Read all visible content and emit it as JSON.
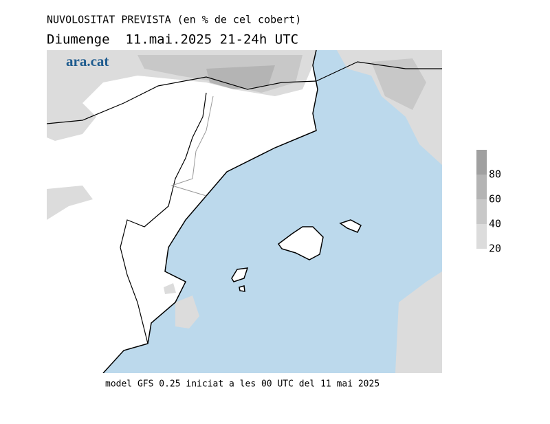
{
  "header": {
    "title": "NUVOLOSITAT PREVISTA (en % de cel cobert)",
    "subtitle": "Diumenge  11.mai.2025 21-24h UTC"
  },
  "logo": "ara.cat",
  "colorbar": {
    "range": [
      20,
      100
    ],
    "ticks": [
      20,
      40,
      60,
      80
    ],
    "colors": [
      "#dcdcdc",
      "#c8c8c8",
      "#b4b4b4",
      "#a0a0a0"
    ]
  },
  "footer": "model GFS 0.25 iniciat a les 00 UTC del 11 mai 2025"
}
